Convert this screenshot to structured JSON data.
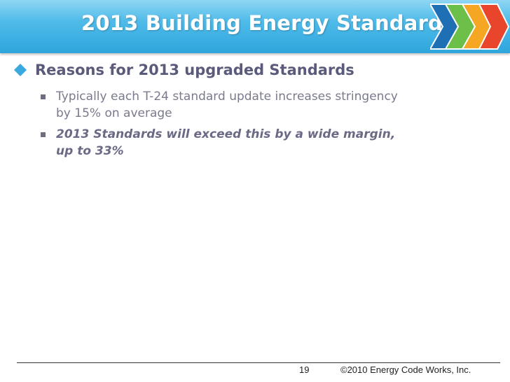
{
  "slide": {
    "title": "2013 Building Energy Standards",
    "heading": "Reasons for 2013 upgraded Standards",
    "bullets": [
      {
        "line1": "Typically each T-24 standard update increases stringency",
        "line2": "by 15% on average"
      },
      {
        "line1": "2013 Standards will exceed this by a wide margin,",
        "line2": "up to 33%"
      }
    ]
  },
  "footer": {
    "page_number": "19",
    "copyright": "©2010 Energy Code Works, Inc."
  },
  "colors": {
    "title_bar": "#2ea6dd",
    "arrow_blue": "#1f6fb5",
    "arrow_green": "#6cc04a",
    "arrow_orange": "#f5a623",
    "arrow_red": "#e8452c",
    "diamond": "#3aa9e0"
  }
}
